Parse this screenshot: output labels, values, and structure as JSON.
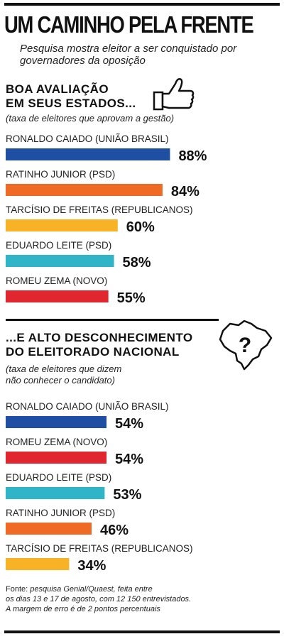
{
  "title": "UM CAMINHO PELA FRENTE",
  "subtitle": "Pesquisa mostra eleitor a ser conquistado por governadores da oposição",
  "icons": {
    "approval": "thumbs-up-icon",
    "unknown": "brazil-map-question-icon"
  },
  "colors": {
    "blue": "#1f4fa3",
    "orange": "#ef6a25",
    "yellow": "#f7b325",
    "teal": "#2fb4c8",
    "red": "#e0262f"
  },
  "section1": {
    "heading_line1": "BOA AVALIAÇÃO",
    "heading_line2": "EM SEUS ESTADOS...",
    "note": "(taxa de eleitores que aprovam a gestão)"
  },
  "section2": {
    "heading_line1": "...E ALTO DESCONHECIMENTO",
    "heading_line2": "DO ELEITORADO NACIONAL",
    "note_line1": "(taxa de eleitores que dizem",
    "note_line2": "não conhecer o candidato)"
  },
  "footer": {
    "line1_plain": "Fonte:",
    "line1_italic": "pesquisa Genial/Quaest, feita entre",
    "line2": "os dias 13 e 17 de agosto, com 12 150 entrevistados.",
    "line3": "A margem de erro é de 2 pontos percentuais"
  },
  "chart_data": [
    {
      "type": "bar",
      "orientation": "horizontal",
      "unit": "%",
      "xlim": [
        0,
        100
      ],
      "categories": [
        "RONALDO CAIADO (UNIÃO BRASIL)",
        "RATINHO JUNIOR (PSD)",
        "TARCÍSIO DE FREITAS (REPUBLICANOS)",
        "EDUARDO LEITE (PSD)",
        "ROMEU ZEMA (NOVO)"
      ],
      "values": [
        88,
        84,
        60,
        58,
        55
      ],
      "value_labels": [
        "88%",
        "84%",
        "60%",
        "58%",
        "55%"
      ],
      "colors": [
        "#1f4fa3",
        "#ef6a25",
        "#f7b325",
        "#2fb4c8",
        "#e0262f"
      ]
    },
    {
      "type": "bar",
      "orientation": "horizontal",
      "unit": "%",
      "xlim": [
        0,
        100
      ],
      "categories": [
        "RONALDO CAIADO (UNIÃO BRASIL)",
        "ROMEU ZEMA (NOVO)",
        "EDUARDO LEITE (PSD)",
        "RATINHO JUNIOR (PSD)",
        "TARCÍSIO DE FREITAS (REPUBLICANOS)"
      ],
      "values": [
        54,
        54,
        53,
        46,
        34
      ],
      "value_labels": [
        "54%",
        "54%",
        "53%",
        "46%",
        "34%"
      ],
      "colors": [
        "#1f4fa3",
        "#e0262f",
        "#2fb4c8",
        "#ef6a25",
        "#f7b325"
      ]
    }
  ]
}
